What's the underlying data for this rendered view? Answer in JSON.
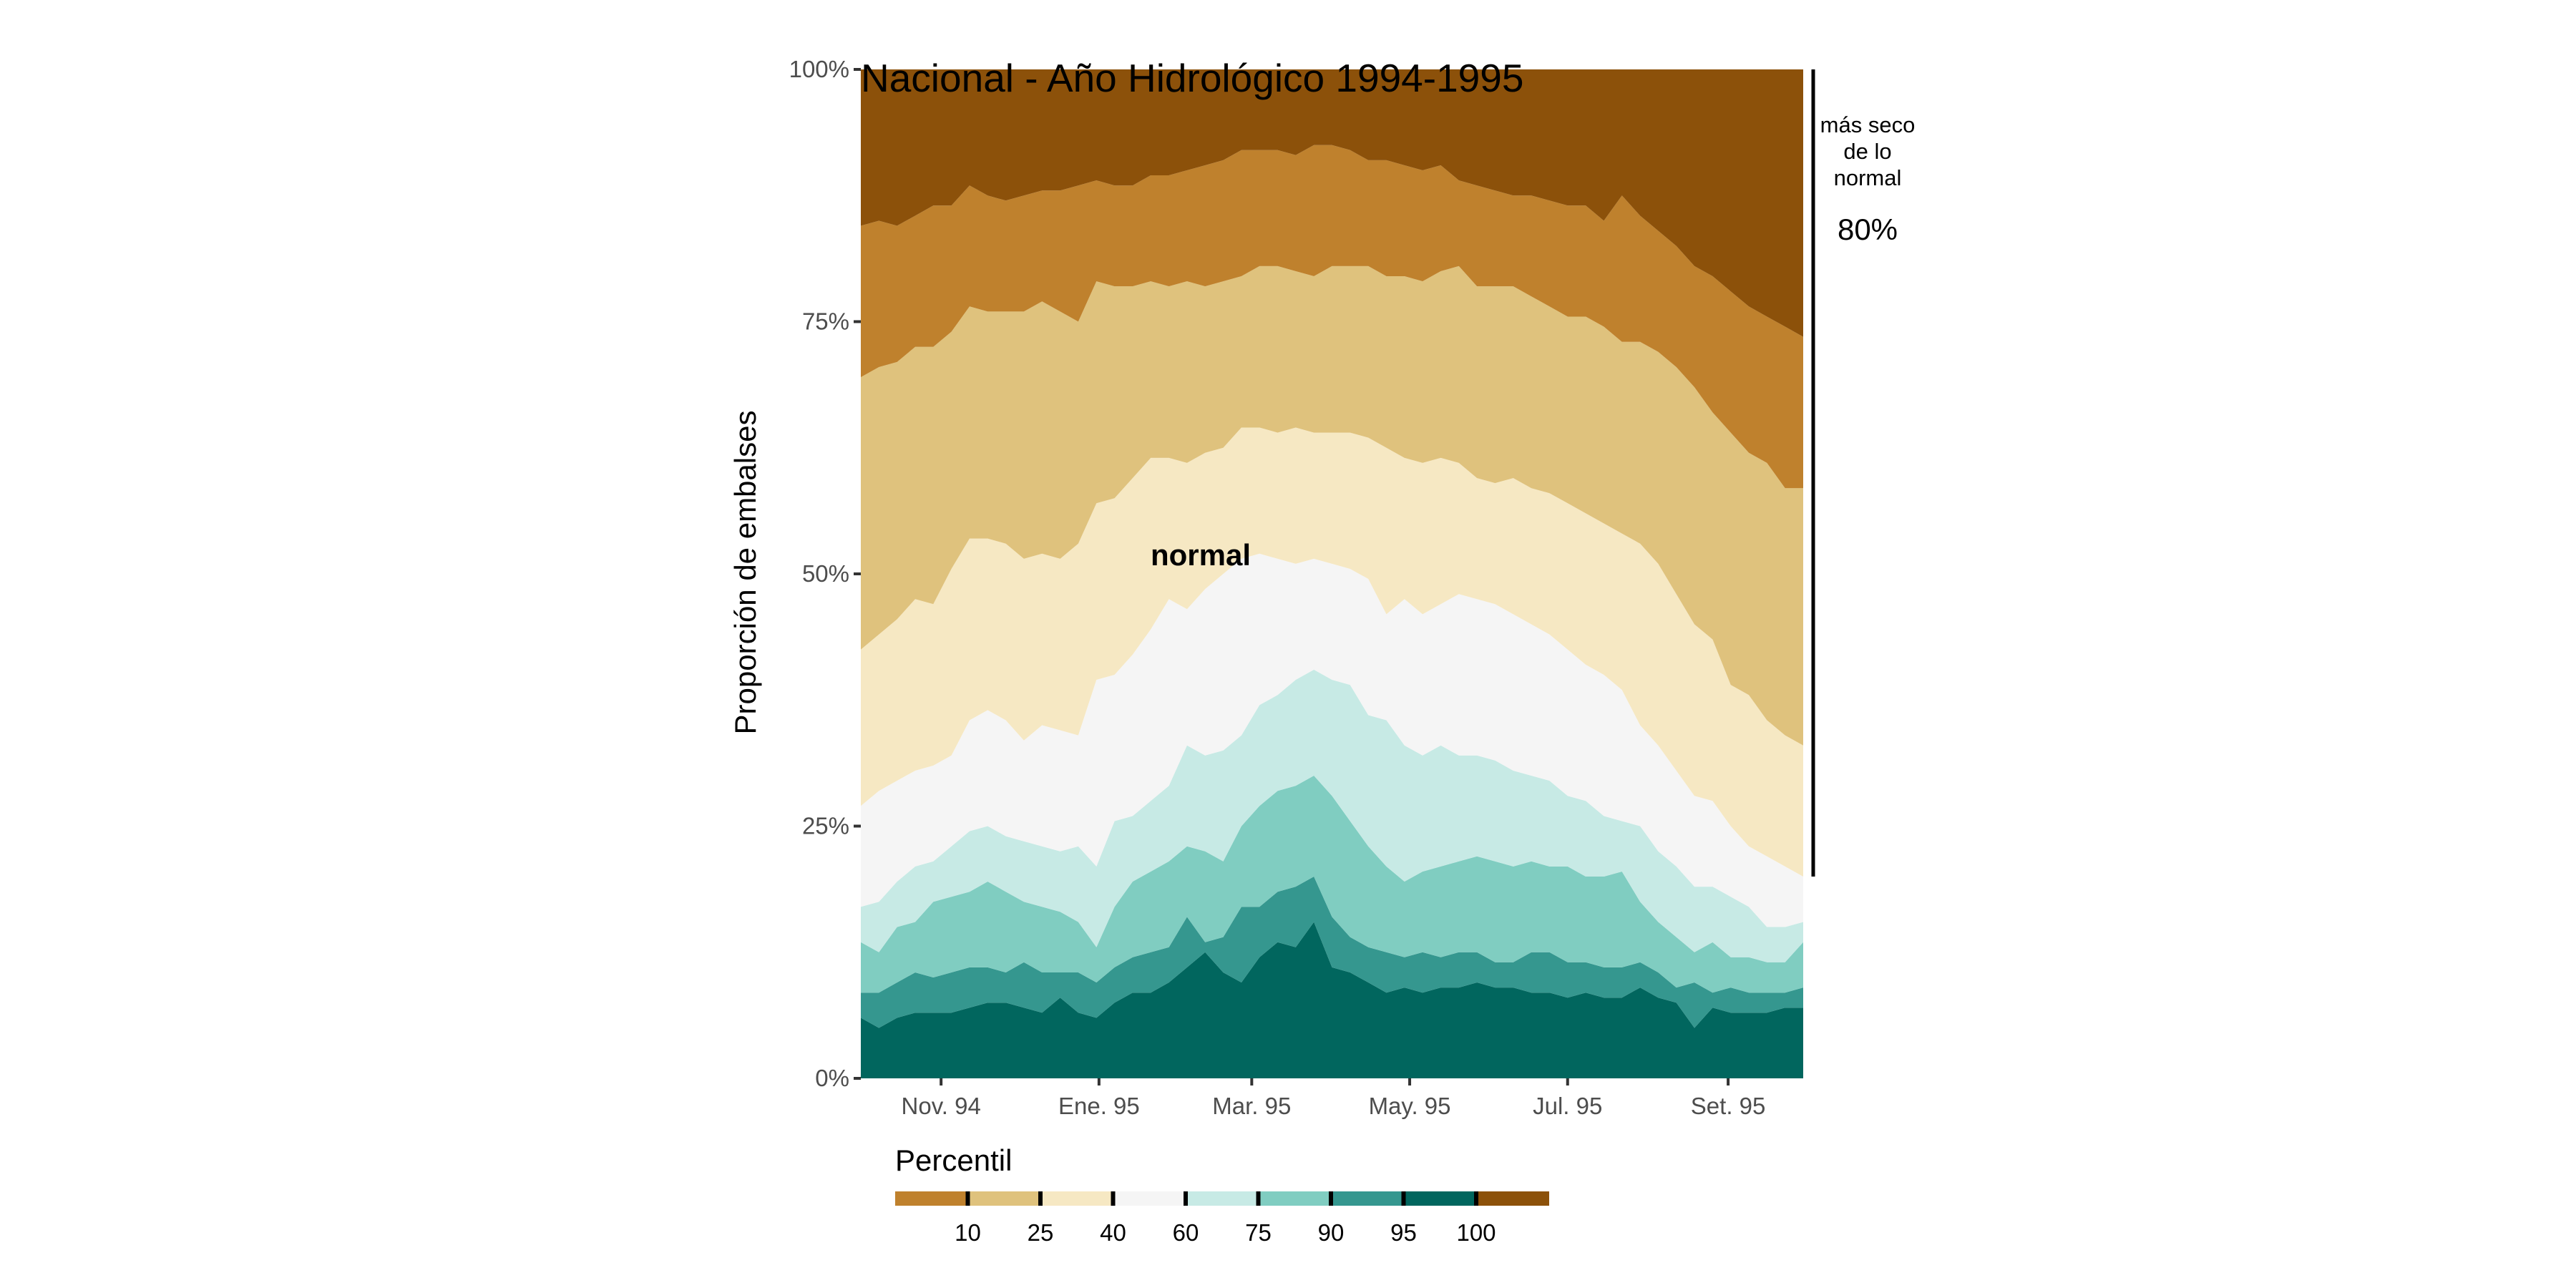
{
  "chart_data": {
    "type": "area",
    "stacking": "proportional (100%)",
    "title": "Nacional - Año Hidrológico 1994-1995",
    "ylabel": "Proporción de embalses",
    "xlabel": "",
    "ylim": [
      0,
      100
    ],
    "y_ticks": [
      "0%",
      "25%",
      "50%",
      "75%",
      "100%"
    ],
    "x_ticks": [
      {
        "label": "Nov. 94",
        "date": "1994-11-01"
      },
      {
        "label": "Ene. 95",
        "date": "1995-01-01"
      },
      {
        "label": "Mar. 95",
        "date": "1995-03-01"
      },
      {
        "label": "May. 95",
        "date": "1995-05-01"
      },
      {
        "label": "Jul. 95",
        "date": "1995-07-01"
      },
      {
        "label": "Set. 95",
        "date": "1995-09-01"
      }
    ],
    "x_start": "1994-10-01",
    "x_end": "1995-09-30",
    "grid": false,
    "legend": {
      "title": "Percentil",
      "placement": "bottom",
      "breaks": [
        "10",
        "25",
        "40",
        "60",
        "75",
        "90",
        "95",
        "100"
      ],
      "colors": [
        "#BF812D",
        "#DFC27D",
        "#F6E8C3",
        "#F5F5F5",
        "#C7EAE5",
        "#80CDC1",
        "#35978F",
        "#01665E",
        "#8C510A"
      ]
    },
    "annotations": {
      "inside_label": "normal",
      "bracket_label": "más seco de lo normal",
      "bracket_value": "80%"
    },
    "x": [
      "1994-10-01",
      "1994-10-08",
      "1994-10-15",
      "1994-10-22",
      "1994-10-29",
      "1994-11-05",
      "1994-11-12",
      "1994-11-19",
      "1994-11-26",
      "1994-12-03",
      "1994-12-10",
      "1994-12-17",
      "1994-12-24",
      "1994-12-31",
      "1995-01-07",
      "1995-01-14",
      "1995-01-21",
      "1995-01-28",
      "1995-02-04",
      "1995-02-11",
      "1995-02-18",
      "1995-02-25",
      "1995-03-04",
      "1995-03-11",
      "1995-03-18",
      "1995-03-25",
      "1995-04-01",
      "1995-04-08",
      "1995-04-15",
      "1995-04-22",
      "1995-04-29",
      "1995-05-06",
      "1995-05-13",
      "1995-05-20",
      "1995-05-27",
      "1995-06-03",
      "1995-06-10",
      "1995-06-17",
      "1995-06-24",
      "1995-07-01",
      "1995-07-08",
      "1995-07-15",
      "1995-07-22",
      "1995-07-29",
      "1995-08-05",
      "1995-08-12",
      "1995-08-19",
      "1995-08-26",
      "1995-09-02",
      "1995-09-09",
      "1995-09-16",
      "1995-09-23",
      "1995-09-30"
    ],
    "series": [
      {
        "name": "100",
        "color": "#01665E",
        "values": [
          6.0,
          5.0,
          6.0,
          6.5,
          6.5,
          6.5,
          7.0,
          7.5,
          7.5,
          7.0,
          6.5,
          8.0,
          6.5,
          6.0,
          7.5,
          8.5,
          8.5,
          9.5,
          11.0,
          12.5,
          10.5,
          9.5,
          12.0,
          13.5,
          13.0,
          15.5,
          11.0,
          10.5,
          9.5,
          8.5,
          9.0,
          8.5,
          9.0,
          9.0,
          9.5,
          9.0,
          9.0,
          8.5,
          8.5,
          8.0,
          8.5,
          8.0,
          8.0,
          9.0,
          8.0,
          7.5,
          5.0,
          7.0,
          6.5,
          6.5,
          6.5,
          7.0,
          7.0
        ]
      },
      {
        "name": "95",
        "color": "#35978F",
        "values": [
          8.5,
          8.5,
          9.5,
          10.5,
          10.0,
          10.5,
          11.0,
          11.0,
          10.5,
          11.5,
          10.5,
          10.5,
          10.5,
          9.5,
          11.0,
          12.0,
          12.5,
          13.0,
          16.0,
          13.5,
          14.0,
          17.0,
          17.0,
          18.5,
          19.0,
          20.0,
          16.0,
          14.0,
          13.0,
          12.5,
          12.0,
          12.5,
          12.0,
          12.5,
          12.5,
          11.5,
          11.5,
          12.5,
          12.5,
          11.5,
          11.5,
          11.0,
          11.0,
          11.5,
          10.5,
          9.0,
          9.5,
          8.5,
          9.0,
          8.5,
          8.5,
          8.5,
          9.0
        ]
      },
      {
        "name": "90",
        "color": "#80CDC1",
        "values": [
          13.5,
          12.5,
          15.0,
          15.5,
          17.5,
          18.0,
          18.5,
          19.5,
          18.5,
          17.5,
          17.0,
          16.5,
          15.5,
          13.0,
          17.0,
          19.5,
          20.5,
          21.5,
          23.0,
          22.5,
          21.5,
          25.0,
          27.0,
          28.5,
          29.0,
          30.0,
          28.0,
          25.5,
          23.0,
          21.0,
          19.5,
          20.5,
          21.0,
          21.5,
          22.0,
          21.5,
          21.0,
          21.5,
          21.0,
          21.0,
          20.0,
          20.0,
          20.5,
          17.5,
          15.5,
          14.0,
          12.5,
          13.5,
          12.0,
          12.0,
          11.5,
          11.5,
          13.5
        ]
      },
      {
        "name": "75",
        "color": "#C7EAE5",
        "values": [
          17.0,
          17.5,
          19.5,
          21.0,
          21.5,
          23.0,
          24.5,
          25.0,
          24.0,
          23.5,
          23.0,
          22.5,
          23.0,
          21.0,
          25.5,
          26.0,
          27.5,
          29.0,
          33.0,
          32.0,
          32.5,
          34.0,
          37.0,
          38.0,
          39.5,
          40.5,
          39.5,
          39.0,
          36.0,
          35.5,
          33.0,
          32.0,
          33.0,
          32.0,
          32.0,
          31.5,
          30.5,
          30.0,
          29.5,
          28.0,
          27.5,
          26.0,
          25.5,
          25.0,
          22.5,
          21.0,
          19.0,
          19.0,
          18.0,
          17.0,
          15.0,
          15.0,
          15.5
        ]
      },
      {
        "name": "60",
        "color": "#F5F5F5",
        "values": [
          27.0,
          28.5,
          29.5,
          30.5,
          31.0,
          32.0,
          35.5,
          36.5,
          35.5,
          33.5,
          35.0,
          34.5,
          34.0,
          39.5,
          40.0,
          42.0,
          44.5,
          47.5,
          46.5,
          48.5,
          50.0,
          51.5,
          52.0,
          51.5,
          51.0,
          51.5,
          51.0,
          50.5,
          49.5,
          46.0,
          47.5,
          46.0,
          47.0,
          48.0,
          47.5,
          47.0,
          46.0,
          45.0,
          44.0,
          42.5,
          41.0,
          40.0,
          38.5,
          35.0,
          33.0,
          30.5,
          28.0,
          27.5,
          25.0,
          23.0,
          22.0,
          21.0,
          20.0
        ]
      },
      {
        "name": "40",
        "color": "#F6E8C3",
        "values": [
          42.5,
          44.0,
          45.5,
          47.5,
          47.0,
          50.5,
          53.5,
          53.5,
          53.0,
          51.5,
          52.0,
          51.5,
          53.0,
          57.0,
          57.5,
          59.5,
          61.5,
          61.5,
          61.0,
          62.0,
          62.5,
          64.5,
          64.5,
          64.0,
          64.5,
          64.0,
          64.0,
          64.0,
          63.5,
          62.5,
          61.5,
          61.0,
          61.5,
          61.0,
          59.5,
          59.0,
          59.5,
          58.5,
          58.0,
          57.0,
          56.0,
          55.0,
          54.0,
          53.0,
          51.0,
          48.0,
          45.0,
          43.5,
          39.0,
          38.0,
          35.5,
          34.0,
          33.0
        ]
      },
      {
        "name": "25",
        "color": "#DFC27D",
        "values": [
          69.5,
          70.5,
          71.0,
          72.5,
          72.5,
          74.0,
          76.5,
          76.0,
          76.0,
          76.0,
          77.0,
          76.0,
          75.0,
          79.0,
          78.5,
          78.5,
          79.0,
          78.5,
          79.0,
          78.5,
          79.0,
          79.5,
          80.5,
          80.5,
          80.0,
          79.5,
          80.5,
          80.5,
          80.5,
          79.5,
          79.5,
          79.0,
          80.0,
          80.5,
          78.5,
          78.5,
          78.5,
          77.5,
          76.5,
          75.5,
          75.5,
          74.5,
          73.0,
          73.0,
          72.0,
          70.5,
          68.5,
          66.0,
          64.0,
          62.0,
          61.0,
          58.5,
          58.5
        ]
      },
      {
        "name": "10",
        "color": "#BF812D",
        "values": [
          84.5,
          85.0,
          84.5,
          85.5,
          86.5,
          86.5,
          88.5,
          87.5,
          87.0,
          87.5,
          88.0,
          88.0,
          88.5,
          89.0,
          88.5,
          88.5,
          89.5,
          89.5,
          90.0,
          90.5,
          91.0,
          92.0,
          92.0,
          92.0,
          91.5,
          92.5,
          92.5,
          92.0,
          91.0,
          91.0,
          90.5,
          90.0,
          90.5,
          89.0,
          88.5,
          88.0,
          87.5,
          87.5,
          87.0,
          86.5,
          86.5,
          85.0,
          87.5,
          85.5,
          84.0,
          82.5,
          80.5,
          79.5,
          78.0,
          76.5,
          75.5,
          74.5,
          73.5
        ]
      },
      {
        "name": "",
        "color": "#8C510A",
        "values": [
          100,
          100,
          100,
          100,
          100,
          100,
          100,
          100,
          100,
          100,
          100,
          100,
          100,
          100,
          100,
          100,
          100,
          100,
          100,
          100,
          100,
          100,
          100,
          100,
          100,
          100,
          100,
          100,
          100,
          100,
          100,
          100,
          100,
          100,
          100,
          100,
          100,
          100,
          100,
          100,
          100,
          100,
          100,
          100,
          100,
          100,
          100,
          100,
          100,
          100,
          100,
          100,
          100
        ]
      }
    ]
  }
}
